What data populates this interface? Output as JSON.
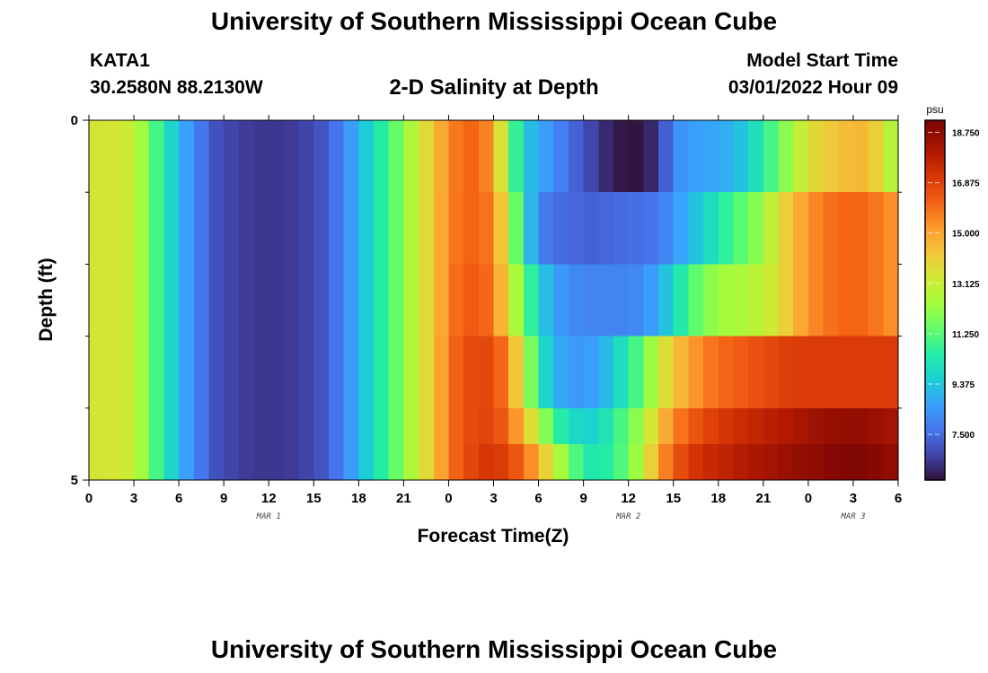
{
  "page": {
    "title": "University of Southern Mississippi Ocean Cube",
    "title_repeat": "University of Southern Mississippi Ocean Cube",
    "station_id": "KATA1",
    "station_coords": "30.2580N  88.2130W",
    "subtitle": "2-D Salinity at Depth",
    "model_start_label": "Model Start Time",
    "model_start_value": "03/01/2022 Hour 09"
  },
  "chart_data": {
    "type": "heatmap",
    "title": "2-D Salinity at Depth",
    "xlabel": "Forecast Time(Z)",
    "ylabel": "Depth (ft)",
    "colorbar_unit": "psu",
    "x_tick_labels": [
      "0",
      "3",
      "6",
      "9",
      "12",
      "15",
      "18",
      "21",
      "0",
      "3",
      "6",
      "9",
      "12",
      "15",
      "18",
      "21",
      "0",
      "3",
      "6"
    ],
    "x_range_hours": [
      0,
      54
    ],
    "date_labels": [
      {
        "text": "MAR 1",
        "hour": 12
      },
      {
        "text": "MAR 2",
        "hour": 36
      },
      {
        "text": "MAR 3",
        "hour": 51
      }
    ],
    "y_tick_labels": [
      "0",
      "5"
    ],
    "y_range": [
      0,
      5
    ],
    "y_minor_ticks": [
      1,
      2,
      3,
      4
    ],
    "colorbar_ticks": [
      "18.750",
      "16.875",
      "15.000",
      "13.125",
      "11.250",
      "9.375",
      "7.500"
    ],
    "colorbar_tick_values": [
      18.75,
      16.875,
      15.0,
      13.125,
      11.25,
      9.375,
      7.5
    ],
    "color_range": [
      5.8,
      19.2
    ],
    "grid": false,
    "time_step_hours": 1,
    "depth_layers": [
      "0-1",
      "1-2",
      "2-3",
      "3-4",
      "4-4.5",
      "4.5-5"
    ],
    "depth_layer_bounds": [
      0,
      1,
      2,
      3,
      4,
      4.5,
      5
    ],
    "layer_profiles": [
      [
        [
          0,
          13.5
        ],
        [
          3,
          13.2
        ],
        [
          4,
          11.5
        ],
        [
          5,
          10.5
        ],
        [
          6,
          9.0
        ],
        [
          7,
          8.2
        ],
        [
          8,
          7.2
        ],
        [
          9,
          6.8
        ],
        [
          11,
          6.5
        ],
        [
          13,
          6.5
        ],
        [
          15,
          6.8
        ],
        [
          16,
          7.3
        ],
        [
          17,
          8.0
        ],
        [
          18,
          9.0
        ],
        [
          19,
          10.0
        ],
        [
          20,
          11.0
        ],
        [
          21,
          12.0
        ],
        [
          22,
          13.2
        ],
        [
          23,
          14.2
        ],
        [
          24,
          15.5
        ],
        [
          25,
          16.0
        ],
        [
          26,
          16.2
        ],
        [
          27,
          15.0
        ],
        [
          28,
          12.0
        ],
        [
          29,
          9.5
        ],
        [
          30,
          8.8
        ],
        [
          31,
          8.2
        ],
        [
          32,
          7.6
        ],
        [
          33,
          7.0
        ],
        [
          34,
          6.5
        ],
        [
          35,
          6.0
        ],
        [
          36,
          5.8
        ],
        [
          37,
          5.9
        ],
        [
          38,
          6.5
        ],
        [
          39,
          8.0
        ],
        [
          40,
          8.6
        ],
        [
          41,
          8.6
        ],
        [
          42,
          8.7
        ],
        [
          43,
          9.0
        ],
        [
          44,
          9.6
        ],
        [
          45,
          10.5
        ],
        [
          46,
          11.5
        ],
        [
          47,
          12.5
        ],
        [
          48,
          13.5
        ],
        [
          49,
          14.0
        ],
        [
          50,
          14.3
        ],
        [
          51,
          14.6
        ],
        [
          52,
          14.5
        ],
        [
          53,
          13.5
        ],
        [
          54,
          12.0
        ]
      ],
      [
        [
          0,
          13.5
        ],
        [
          3,
          13.2
        ],
        [
          4,
          11.5
        ],
        [
          5,
          10.5
        ],
        [
          6,
          9.0
        ],
        [
          7,
          8.2
        ],
        [
          8,
          7.2
        ],
        [
          9,
          6.8
        ],
        [
          11,
          6.5
        ],
        [
          13,
          6.5
        ],
        [
          15,
          6.8
        ],
        [
          16,
          7.3
        ],
        [
          17,
          8.0
        ],
        [
          18,
          9.0
        ],
        [
          19,
          10.0
        ],
        [
          20,
          11.0
        ],
        [
          21,
          12.0
        ],
        [
          22,
          13.2
        ],
        [
          23,
          14.2
        ],
        [
          24,
          15.6
        ],
        [
          25,
          16.0
        ],
        [
          26,
          16.2
        ],
        [
          27,
          15.5
        ],
        [
          28,
          13.0
        ],
        [
          29,
          10.0
        ],
        [
          30,
          8.0
        ],
        [
          31,
          7.5
        ],
        [
          32,
          7.5
        ],
        [
          33,
          7.3
        ],
        [
          34,
          7.3
        ],
        [
          35,
          7.5
        ],
        [
          36,
          7.5
        ],
        [
          37,
          7.6
        ],
        [
          38,
          7.8
        ],
        [
          39,
          8.3
        ],
        [
          40,
          9.0
        ],
        [
          41,
          9.6
        ],
        [
          42,
          10.3
        ],
        [
          43,
          11.0
        ],
        [
          44,
          11.6
        ],
        [
          45,
          12.3
        ],
        [
          46,
          13.5
        ],
        [
          47,
          14.5
        ],
        [
          48,
          15.3
        ],
        [
          49,
          15.8
        ],
        [
          50,
          16.0
        ],
        [
          51,
          16.2
        ],
        [
          52,
          16.0
        ],
        [
          53,
          15.6
        ],
        [
          54,
          15.2
        ]
      ],
      [
        [
          0,
          13.5
        ],
        [
          3,
          13.2
        ],
        [
          4,
          11.5
        ],
        [
          5,
          10.5
        ],
        [
          6,
          9.0
        ],
        [
          7,
          8.2
        ],
        [
          8,
          7.2
        ],
        [
          9,
          6.8
        ],
        [
          11,
          6.5
        ],
        [
          13,
          6.5
        ],
        [
          15,
          6.8
        ],
        [
          16,
          7.3
        ],
        [
          17,
          8.0
        ],
        [
          18,
          9.0
        ],
        [
          19,
          10.0
        ],
        [
          20,
          11.0
        ],
        [
          21,
          12.0
        ],
        [
          22,
          13.2
        ],
        [
          23,
          14.2
        ],
        [
          24,
          15.6
        ],
        [
          25,
          16.3
        ],
        [
          26,
          16.3
        ],
        [
          27,
          15.8
        ],
        [
          28,
          13.5
        ],
        [
          29,
          11.5
        ],
        [
          30,
          9.8
        ],
        [
          31,
          8.6
        ],
        [
          32,
          8.2
        ],
        [
          33,
          8.0
        ],
        [
          34,
          8.0
        ],
        [
          35,
          8.0
        ],
        [
          36,
          8.0
        ],
        [
          37,
          8.2
        ],
        [
          38,
          8.8
        ],
        [
          39,
          9.8
        ],
        [
          40,
          11.0
        ],
        [
          41,
          11.8
        ],
        [
          42,
          12.3
        ],
        [
          43,
          12.5
        ],
        [
          44,
          12.6
        ],
        [
          45,
          13.0
        ],
        [
          46,
          13.5
        ],
        [
          47,
          14.5
        ],
        [
          48,
          15.3
        ],
        [
          49,
          15.8
        ],
        [
          50,
          16.0
        ],
        [
          51,
          16.2
        ],
        [
          52,
          16.0
        ],
        [
          53,
          15.6
        ],
        [
          54,
          15.2
        ]
      ],
      [
        [
          0,
          13.5
        ],
        [
          3,
          13.2
        ],
        [
          4,
          11.5
        ],
        [
          5,
          10.5
        ],
        [
          6,
          9.0
        ],
        [
          7,
          8.2
        ],
        [
          8,
          7.2
        ],
        [
          9,
          6.8
        ],
        [
          11,
          6.5
        ],
        [
          13,
          6.5
        ],
        [
          15,
          6.8
        ],
        [
          16,
          7.3
        ],
        [
          17,
          8.0
        ],
        [
          18,
          9.0
        ],
        [
          19,
          10.0
        ],
        [
          20,
          11.0
        ],
        [
          21,
          12.0
        ],
        [
          22,
          13.2
        ],
        [
          23,
          14.2
        ],
        [
          24,
          15.8
        ],
        [
          25,
          16.5
        ],
        [
          26,
          16.8
        ],
        [
          27,
          16.6
        ],
        [
          28,
          15.5
        ],
        [
          29,
          13.0
        ],
        [
          30,
          10.5
        ],
        [
          31,
          9.0
        ],
        [
          32,
          8.5
        ],
        [
          33,
          8.4
        ],
        [
          34,
          8.7
        ],
        [
          35,
          9.5
        ],
        [
          36,
          10.5
        ],
        [
          37,
          11.5
        ],
        [
          38,
          13.0
        ],
        [
          39,
          14.2
        ],
        [
          40,
          15.0
        ],
        [
          41,
          15.6
        ],
        [
          42,
          16.0
        ],
        [
          43,
          16.2
        ],
        [
          44,
          16.4
        ],
        [
          45,
          16.6
        ],
        [
          46,
          16.8
        ],
        [
          47,
          17.0
        ],
        [
          48,
          17.0
        ],
        [
          49,
          17.0
        ],
        [
          50,
          17.0
        ],
        [
          51,
          17.0
        ],
        [
          52,
          17.0
        ],
        [
          53,
          17.0
        ],
        [
          54,
          17.0
        ]
      ],
      [
        [
          0,
          13.5
        ],
        [
          3,
          13.2
        ],
        [
          4,
          11.5
        ],
        [
          5,
          10.5
        ],
        [
          6,
          9.0
        ],
        [
          7,
          8.2
        ],
        [
          8,
          7.2
        ],
        [
          9,
          6.8
        ],
        [
          11,
          6.5
        ],
        [
          13,
          6.5
        ],
        [
          15,
          6.8
        ],
        [
          16,
          7.3
        ],
        [
          17,
          8.0
        ],
        [
          18,
          9.0
        ],
        [
          19,
          10.0
        ],
        [
          20,
          11.0
        ],
        [
          21,
          12.0
        ],
        [
          22,
          13.2
        ],
        [
          23,
          14.2
        ],
        [
          24,
          15.8
        ],
        [
          25,
          16.5
        ],
        [
          26,
          16.8
        ],
        [
          27,
          16.8
        ],
        [
          28,
          16.0
        ],
        [
          29,
          14.5
        ],
        [
          30,
          12.8
        ],
        [
          31,
          11.0
        ],
        [
          32,
          10.0
        ],
        [
          33,
          9.6
        ],
        [
          34,
          9.8
        ],
        [
          35,
          10.6
        ],
        [
          36,
          11.5
        ],
        [
          37,
          12.5
        ],
        [
          38,
          14.2
        ],
        [
          39,
          15.5
        ],
        [
          40,
          16.2
        ],
        [
          41,
          16.7
        ],
        [
          42,
          17.0
        ],
        [
          43,
          17.3
        ],
        [
          44,
          17.5
        ],
        [
          45,
          17.7
        ],
        [
          46,
          17.9
        ],
        [
          47,
          18.1
        ],
        [
          48,
          18.3
        ],
        [
          49,
          18.5
        ],
        [
          50,
          18.6
        ],
        [
          51,
          18.7
        ],
        [
          52,
          18.6
        ],
        [
          53,
          18.4
        ],
        [
          54,
          18.2
        ]
      ],
      [
        [
          0,
          13.5
        ],
        [
          3,
          13.2
        ],
        [
          4,
          11.5
        ],
        [
          5,
          10.5
        ],
        [
          6,
          9.0
        ],
        [
          7,
          8.2
        ],
        [
          8,
          7.2
        ],
        [
          9,
          6.8
        ],
        [
          11,
          6.5
        ],
        [
          13,
          6.5
        ],
        [
          15,
          6.8
        ],
        [
          16,
          7.3
        ],
        [
          17,
          8.0
        ],
        [
          18,
          9.0
        ],
        [
          19,
          10.0
        ],
        [
          20,
          11.0
        ],
        [
          21,
          12.0
        ],
        [
          22,
          13.2
        ],
        [
          23,
          14.2
        ],
        [
          24,
          15.8
        ],
        [
          25,
          16.5
        ],
        [
          26,
          17.0
        ],
        [
          27,
          17.2
        ],
        [
          28,
          16.8
        ],
        [
          29,
          16.0
        ],
        [
          30,
          14.8
        ],
        [
          31,
          13.0
        ],
        [
          32,
          11.8
        ],
        [
          33,
          10.5
        ],
        [
          34,
          10.2
        ],
        [
          35,
          10.8
        ],
        [
          36,
          11.5
        ],
        [
          37,
          13.0
        ],
        [
          38,
          15.0
        ],
        [
          39,
          16.3
        ],
        [
          40,
          17.0
        ],
        [
          41,
          17.4
        ],
        [
          42,
          17.6
        ],
        [
          43,
          17.8
        ],
        [
          44,
          18.0
        ],
        [
          45,
          18.2
        ],
        [
          46,
          18.4
        ],
        [
          47,
          18.6
        ],
        [
          48,
          18.7
        ],
        [
          49,
          18.8
        ],
        [
          50,
          19.0
        ],
        [
          51,
          19.1
        ],
        [
          52,
          19.0
        ],
        [
          53,
          18.8
        ],
        [
          54,
          18.6
        ]
      ]
    ]
  }
}
